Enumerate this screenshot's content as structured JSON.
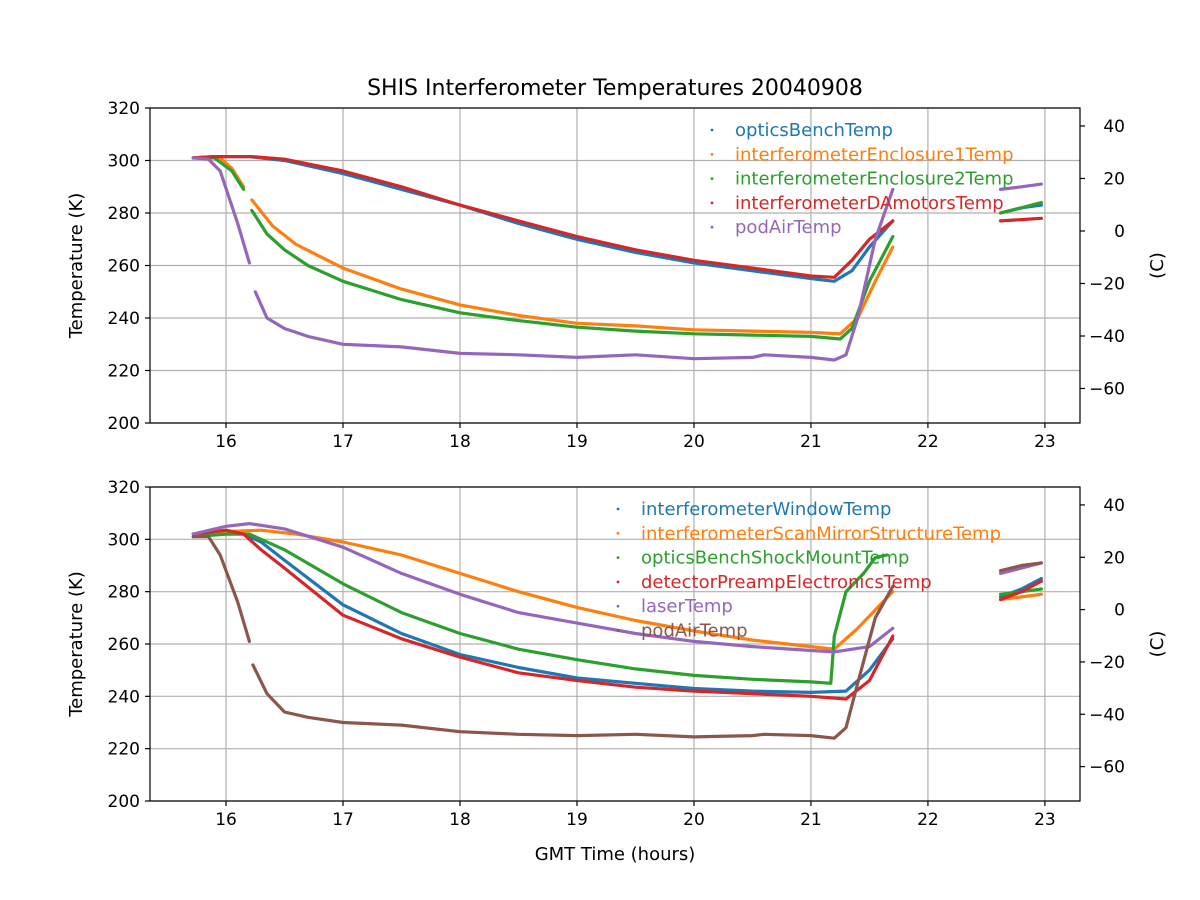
{
  "chart_data": {
    "title": "SHIS Interferometer Temperatures 20040908",
    "xlabel": "GMT Time (hours)",
    "type": "scatter",
    "panels": [
      {
        "ylabel": "Temperature (K)",
        "ylabel_right": "(C)",
        "xlim": [
          15.35,
          23.3
        ],
        "ylim": [
          200,
          320
        ],
        "xticks": [
          16,
          17,
          18,
          19,
          20,
          21,
          22,
          23
        ],
        "yticks": [
          200,
          220,
          240,
          260,
          280,
          300,
          320
        ],
        "yticks_right": [
          40,
          20,
          0,
          -20,
          -40,
          -60
        ],
        "kelvin_offset": 273.15,
        "grid": true,
        "legend_position": "upper-right",
        "series": [
          {
            "name": "opticsBenchTemp",
            "color": "#1f77b4",
            "segments": [
              {
                "x": [
                  15.72,
                  15.9,
                  16.2,
                  16.5,
                  17.0,
                  17.5,
                  18.0,
                  18.5,
                  19.0,
                  19.5,
                  20.0,
                  20.5,
                  21.0,
                  21.2,
                  21.35,
                  21.5,
                  21.7
                ],
                "y": [
                  301,
                  301.5,
                  301.5,
                  300,
                  295,
                  289,
                  283,
                  276,
                  270,
                  265,
                  261,
                  258,
                  255,
                  254,
                  258,
                  267,
                  277
                ]
              },
              {
                "x": [
                  22.62,
                  22.8,
                  22.97
                ],
                "y": [
                  280,
                  282,
                  283
                ]
              }
            ]
          },
          {
            "name": "interferometerEnclosure1Temp",
            "color": "#ff7f0e",
            "segments": [
              {
                "x": [
                  15.72,
                  15.95,
                  16.05,
                  16.15
                ],
                "y": [
                  301,
                  301,
                  297,
                  290
                ]
              },
              {
                "x": [
                  16.22,
                  16.4,
                  16.6,
                  17.0,
                  17.5,
                  18.0,
                  18.5,
                  19.0,
                  19.5,
                  20.0,
                  20.5,
                  21.0,
                  21.25,
                  21.4,
                  21.55,
                  21.7
                ],
                "y": [
                  285,
                  275,
                  268,
                  259,
                  251,
                  245,
                  241,
                  238,
                  237,
                  235.5,
                  235,
                  234.5,
                  234,
                  240,
                  254,
                  267
                ]
              }
            ]
          },
          {
            "name": "interferometerEnclosure2Temp",
            "color": "#2ca02c",
            "segments": [
              {
                "x": [
                  15.72,
                  15.9,
                  16.05,
                  16.15
                ],
                "y": [
                  301,
                  301,
                  296,
                  289
                ]
              },
              {
                "x": [
                  16.22,
                  16.35,
                  16.5,
                  16.7,
                  17.0,
                  17.5,
                  18.0,
                  18.5,
                  19.0,
                  19.5,
                  20.0,
                  20.5,
                  21.0,
                  21.25,
                  21.35,
                  21.5,
                  21.7
                ],
                "y": [
                  281,
                  272,
                  266,
                  260,
                  254,
                  247,
                  242,
                  239,
                  236.5,
                  235,
                  234,
                  233.5,
                  233,
                  232,
                  236,
                  254,
                  271
                ]
              },
              {
                "x": [
                  22.62,
                  22.8,
                  22.97
                ],
                "y": [
                  280,
                  282,
                  284
                ]
              }
            ]
          },
          {
            "name": "interferometerDAmotorsTemp",
            "color": "#d62728",
            "segments": [
              {
                "x": [
                  15.72,
                  15.9,
                  16.2
                ],
                "y": [
                  301,
                  301.5,
                  301.5
                ]
              },
              {
                "x": [
                  16.22,
                  16.5,
                  17.0,
                  17.5,
                  18.0,
                  18.5,
                  19.0,
                  19.5,
                  20.0,
                  20.5,
                  21.0,
                  21.2,
                  21.35,
                  21.5,
                  21.7
                ],
                "y": [
                  301.5,
                  300.5,
                  296,
                  290,
                  283,
                  277,
                  271,
                  266,
                  262,
                  259,
                  256,
                  255.5,
                  262,
                  270,
                  277
                ]
              },
              {
                "x": [
                  22.62,
                  22.8,
                  22.97
                ],
                "y": [
                  277,
                  277.5,
                  278
                ]
              }
            ]
          },
          {
            "name": "podAirTemp",
            "color": "#9467bd",
            "segments": [
              {
                "x": [
                  15.72,
                  15.85,
                  15.95,
                  16.1,
                  16.2
                ],
                "y": [
                  301,
                  300.5,
                  296,
                  276,
                  261
                ]
              },
              {
                "x": [
                  16.25,
                  16.35,
                  16.5,
                  16.7,
                  17.0,
                  17.5,
                  18.0,
                  18.5,
                  19.0,
                  19.5,
                  20.0,
                  20.5,
                  20.6,
                  21.0,
                  21.2,
                  21.3,
                  21.4,
                  21.55,
                  21.7
                ],
                "y": [
                  250,
                  240,
                  236,
                  233,
                  230,
                  229,
                  226.5,
                  226,
                  225,
                  226,
                  224.5,
                  225,
                  226,
                  225,
                  224,
                  226,
                  240,
                  270,
                  289
                ]
              },
              {
                "x": [
                  22.62,
                  22.8,
                  22.97
                ],
                "y": [
                  289,
                  290,
                  291
                ]
              }
            ]
          }
        ]
      },
      {
        "ylabel": "Temperature (K)",
        "ylabel_right": "(C)",
        "xlim": [
          15.35,
          23.3
        ],
        "ylim": [
          200,
          320
        ],
        "xticks": [
          16,
          17,
          18,
          19,
          20,
          21,
          22,
          23
        ],
        "yticks": [
          200,
          220,
          240,
          260,
          280,
          300,
          320
        ],
        "yticks_right": [
          40,
          20,
          0,
          -20,
          -40,
          -60
        ],
        "kelvin_offset": 273.15,
        "grid": true,
        "legend_position": "upper-right",
        "series": [
          {
            "name": "interferometerWindowTemp",
            "color": "#1f77b4",
            "segments": [
              {
                "x": [
                  15.72,
                  16.0,
                  16.15,
                  16.3,
                  16.5,
                  17.0,
                  17.5,
                  18.0,
                  18.5,
                  19.0,
                  19.5,
                  20.0,
                  20.5,
                  21.0,
                  21.3,
                  21.5,
                  21.7
                ],
                "y": [
                  302,
                  303,
                  302,
                  299,
                  292,
                  275,
                  264,
                  256,
                  251,
                  247,
                  245,
                  243,
                  242,
                  241.5,
                  242,
                  250,
                  262
                ]
              },
              {
                "x": [
                  22.62,
                  22.8,
                  22.97
                ],
                "y": [
                  278,
                  281,
                  285
                ]
              }
            ]
          },
          {
            "name": "interferometerScanMirrorStructureTemp",
            "color": "#ff7f0e",
            "segments": [
              {
                "x": [
                  15.72,
                  16.0,
                  16.3,
                  16.6,
                  17.0,
                  17.5,
                  18.0,
                  18.5,
                  19.0,
                  19.5,
                  20.0,
                  20.5,
                  21.0,
                  21.2,
                  21.4,
                  21.7
                ],
                "y": [
                  302,
                  303,
                  303.5,
                  302,
                  299,
                  294,
                  287,
                  280,
                  274,
                  269,
                  265,
                  261.5,
                  259,
                  258,
                  266,
                  280
                ]
              },
              {
                "x": [
                  22.62,
                  22.8,
                  22.97
                ],
                "y": [
                  277,
                  278,
                  279
                ]
              }
            ]
          },
          {
            "name": "opticsBenchShockMountTemp",
            "color": "#2ca02c",
            "segments": [
              {
                "x": [
                  15.72,
                  16.0,
                  16.2,
                  16.5,
                  17.0,
                  17.5,
                  18.0,
                  18.5,
                  19.0,
                  19.5,
                  20.0,
                  20.5,
                  21.0,
                  21.17,
                  21.2,
                  21.3,
                  21.45,
                  21.55,
                  21.65
                ],
                "y": [
                  301,
                  302,
                  302,
                  296,
                  283,
                  272,
                  264,
                  258,
                  254,
                  250.5,
                  248,
                  246.5,
                  245.5,
                  245,
                  263,
                  280,
                  287,
                  293,
                  294
                ]
              },
              {
                "x": [
                  22.62,
                  22.8,
                  22.97
                ],
                "y": [
                  279,
                  280,
                  281
                ]
              }
            ]
          },
          {
            "name": "detectorPreampElectronicsTemp",
            "color": "#d62728",
            "segments": [
              {
                "x": [
                  15.72,
                  16.0,
                  16.15,
                  16.3,
                  16.5,
                  17.0,
                  17.5,
                  18.0,
                  18.5,
                  19.0,
                  19.5,
                  20.0,
                  20.5,
                  21.0,
                  21.3,
                  21.5,
                  21.7
                ],
                "y": [
                  302,
                  303.5,
                  302,
                  296,
                  289,
                  271,
                  262,
                  255,
                  249,
                  246,
                  243.5,
                  242,
                  241,
                  240,
                  239,
                  246,
                  263
                ]
              },
              {
                "x": [
                  22.62,
                  22.8,
                  22.97
                ],
                "y": [
                  277,
                  280,
                  284
                ]
              }
            ]
          },
          {
            "name": "laserTemp",
            "color": "#9467bd",
            "segments": [
              {
                "x": [
                  15.72,
                  16.0,
                  16.2,
                  16.5,
                  17.0,
                  17.5,
                  18.0,
                  18.5,
                  19.0,
                  19.5,
                  20.0,
                  20.5,
                  21.0,
                  21.2,
                  21.5,
                  21.7
                ],
                "y": [
                  302,
                  305,
                  306,
                  304,
                  297,
                  287,
                  279,
                  272,
                  268,
                  264,
                  261,
                  259,
                  257.5,
                  257,
                  259,
                  266
                ]
              },
              {
                "x": [
                  22.62,
                  22.8,
                  22.97
                ],
                "y": [
                  287,
                  289,
                  291
                ]
              }
            ]
          },
          {
            "name": "podAirTemp",
            "color": "#8c564b",
            "segments": [
              {
                "x": [
                  15.72,
                  15.85,
                  15.95,
                  16.1,
                  16.2
                ],
                "y": [
                  301,
                  301,
                  294,
                  276,
                  261
                ]
              },
              {
                "x": [
                  16.23,
                  16.35,
                  16.5,
                  16.7,
                  17.0,
                  17.5,
                  18.0,
                  18.5,
                  19.0,
                  19.5,
                  20.0,
                  20.5,
                  20.6,
                  21.0,
                  21.2,
                  21.3,
                  21.4,
                  21.55,
                  21.7
                ],
                "y": [
                  252,
                  241,
                  234,
                  232,
                  230,
                  229,
                  226.5,
                  225.5,
                  225,
                  225.5,
                  224.5,
                  225,
                  225.5,
                  225,
                  224,
                  228,
                  245,
                  270,
                  282
                ]
              },
              {
                "x": [
                  22.62,
                  22.8,
                  22.97
                ],
                "y": [
                  288,
                  290,
                  291
                ]
              }
            ]
          }
        ]
      }
    ]
  }
}
